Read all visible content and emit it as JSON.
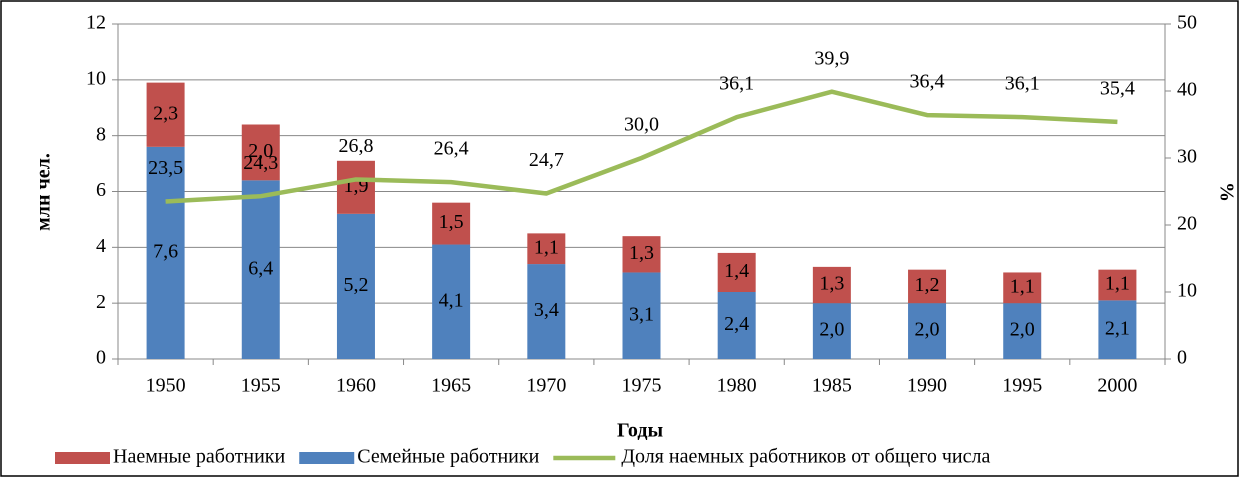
{
  "chart_data": {
    "type": "bar",
    "stacked": true,
    "categories": [
      "1950",
      "1955",
      "1960",
      "1965",
      "1970",
      "1975",
      "1980",
      "1985",
      "1990",
      "1995",
      "2000"
    ],
    "series": [
      {
        "name": "Семейные работники",
        "color": "#4f81bd",
        "values": [
          7.6,
          6.4,
          5.2,
          4.1,
          3.4,
          3.1,
          2.4,
          2.0,
          2.0,
          2.0,
          2.1
        ],
        "value_labels": [
          "7,6",
          "6,4",
          "5,2",
          "4,1",
          "3,4",
          "3,1",
          "2,4",
          "2,0",
          "2,0",
          "2,0",
          "2,1"
        ]
      },
      {
        "name": "Наемные работники",
        "color": "#c0504d",
        "values": [
          2.3,
          2.0,
          1.9,
          1.5,
          1.1,
          1.3,
          1.4,
          1.3,
          1.2,
          1.1,
          1.1
        ],
        "value_labels": [
          "2,3",
          "2,0",
          "1,9",
          "1,5",
          "1,1",
          "1,3",
          "1,4",
          "1,3",
          "1,2",
          "1,1",
          "1,1"
        ]
      },
      {
        "name": "Доля наемных работников от общего числа",
        "type": "line",
        "axis": "y2",
        "color": "#9bbb59",
        "values": [
          23.5,
          24.3,
          26.8,
          26.4,
          24.7,
          30.0,
          36.1,
          39.9,
          36.4,
          36.1,
          35.4
        ],
        "value_labels": [
          "23,5",
          "24,3",
          "26,8",
          "26,4",
          "24,7",
          "30,0",
          "36,1",
          "39,9",
          "36,4",
          "36,1",
          "35,4"
        ]
      }
    ],
    "xlabel": "Годы",
    "ylabel": "млн чел.",
    "y2label": "%",
    "ylim": [
      0,
      12
    ],
    "yticks": [
      0,
      2,
      4,
      6,
      8,
      10,
      12
    ],
    "y2lim": [
      0,
      50
    ],
    "y2ticks": [
      0,
      10,
      20,
      30,
      40,
      50
    ],
    "grid": true,
    "legend": "bottom"
  }
}
